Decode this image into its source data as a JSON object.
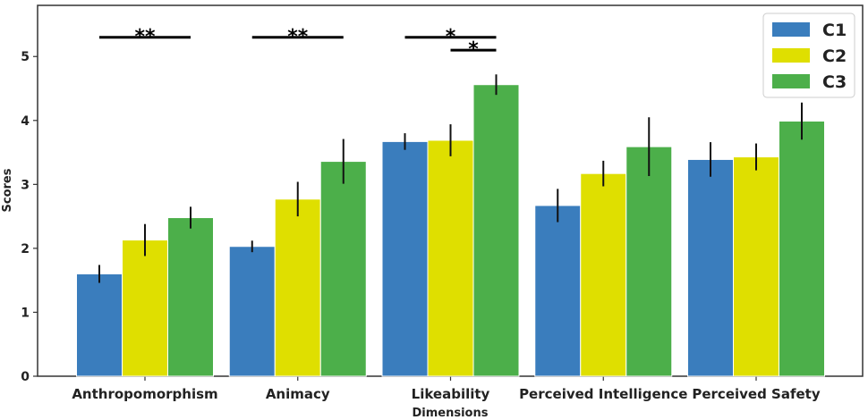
{
  "chart_data": {
    "type": "bar",
    "title": "",
    "xlabel": "Dimensions",
    "ylabel": "Scores",
    "ylim": [
      0,
      5.8
    ],
    "yticks": [
      0,
      1,
      2,
      3,
      4,
      5
    ],
    "categories": [
      "Anthropomorphism",
      "Animacy",
      "Likeability",
      "Perceived Intelligence",
      "Perceived Safety"
    ],
    "series": [
      {
        "name": "C1",
        "color": "#3a7dbd",
        "values": [
          1.6,
          2.03,
          3.67,
          2.67,
          3.39
        ],
        "errors": [
          0.14,
          0.09,
          0.13,
          0.26,
          0.27
        ]
      },
      {
        "name": "C2",
        "color": "#dfdf00",
        "values": [
          2.13,
          2.77,
          3.69,
          3.17,
          3.43
        ],
        "errors": [
          0.25,
          0.27,
          0.25,
          0.2,
          0.21
        ]
      },
      {
        "name": "C3",
        "color": "#4caf4a",
        "values": [
          2.48,
          3.36,
          4.56,
          3.59,
          3.99
        ],
        "errors": [
          0.17,
          0.35,
          0.16,
          0.46,
          0.29
        ]
      }
    ],
    "significance": [
      {
        "category": 0,
        "from_series": 0,
        "to_series": 2,
        "level": 5.3,
        "label": "**"
      },
      {
        "category": 1,
        "from_series": 0,
        "to_series": 2,
        "level": 5.3,
        "label": "**"
      },
      {
        "category": 2,
        "from_series": 0,
        "to_series": 2,
        "level": 5.3,
        "label": "*"
      },
      {
        "category": 2,
        "from_series": 1,
        "to_series": 2,
        "level": 5.1,
        "label": "*"
      }
    ],
    "legend": {
      "position": "top-right",
      "entries": [
        "C1",
        "C2",
        "C3"
      ]
    },
    "grid": false
  }
}
